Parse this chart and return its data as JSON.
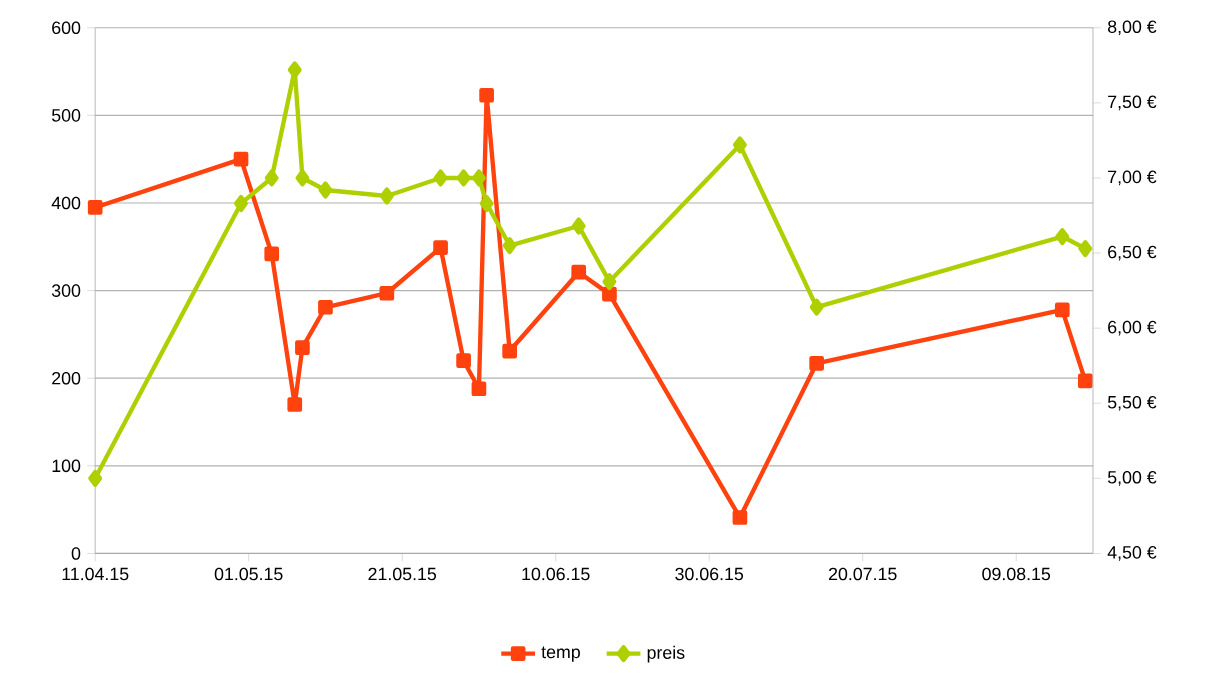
{
  "chart_data": {
    "type": "line",
    "x": [
      "2015-04-11",
      "2015-04-30",
      "2015-05-04",
      "2015-05-07",
      "2015-05-08",
      "2015-05-11",
      "2015-05-19",
      "2015-05-26",
      "2015-05-29",
      "2015-05-31",
      "2015-06-01",
      "2015-06-04",
      "2015-06-13",
      "2015-06-17",
      "2015-07-04",
      "2015-07-14",
      "2015-08-15",
      "2015-08-18"
    ],
    "series": [
      {
        "name": "temp",
        "color": "#ff420e",
        "marker": "square",
        "values": [
          395,
          450,
          342,
          170,
          235,
          281,
          297,
          349,
          220,
          188,
          523,
          231,
          321,
          296,
          41,
          217,
          278,
          197
        ]
      },
      {
        "name": "preis",
        "color": "#aecf00",
        "marker": "diamond",
        "axis": "y2",
        "values": [
          5.0,
          6.83,
          7.0,
          7.72,
          7.0,
          6.92,
          6.88,
          7.0,
          7.0,
          7.0,
          6.83,
          6.55,
          6.68,
          6.31,
          7.22,
          6.14,
          6.61,
          6.53
        ]
      }
    ],
    "xlim": [
      "2015-04-11",
      "2015-08-19"
    ],
    "xticks": [
      {
        "value": "2015-04-11",
        "label": "11.04.15"
      },
      {
        "value": "2015-05-01",
        "label": "01.05.15"
      },
      {
        "value": "2015-05-21",
        "label": "21.05.15"
      },
      {
        "value": "2015-06-10",
        "label": "10.06.15"
      },
      {
        "value": "2015-06-30",
        "label": "30.06.15"
      },
      {
        "value": "2015-07-20",
        "label": "20.07.15"
      },
      {
        "value": "2015-08-09",
        "label": "09.08.15"
      }
    ],
    "ylim": [
      0,
      600
    ],
    "yticks": [
      0,
      100,
      200,
      300,
      400,
      500,
      600
    ],
    "y2lim": [
      4.5,
      8
    ],
    "y2ticks": [
      {
        "value": 4.5,
        "label": "4,50 €"
      },
      {
        "value": 5,
        "label": "5,00 €"
      },
      {
        "value": 5.5,
        "label": "5,50 €"
      },
      {
        "value": 6,
        "label": "6,00 €"
      },
      {
        "value": 6.5,
        "label": "6,50 €"
      },
      {
        "value": 7,
        "label": "7,00 €"
      },
      {
        "value": 7.5,
        "label": "7,50 €"
      },
      {
        "value": 8,
        "label": "8,00 €"
      }
    ],
    "grid": "y",
    "legend": "bottom",
    "line_style": "solid"
  }
}
